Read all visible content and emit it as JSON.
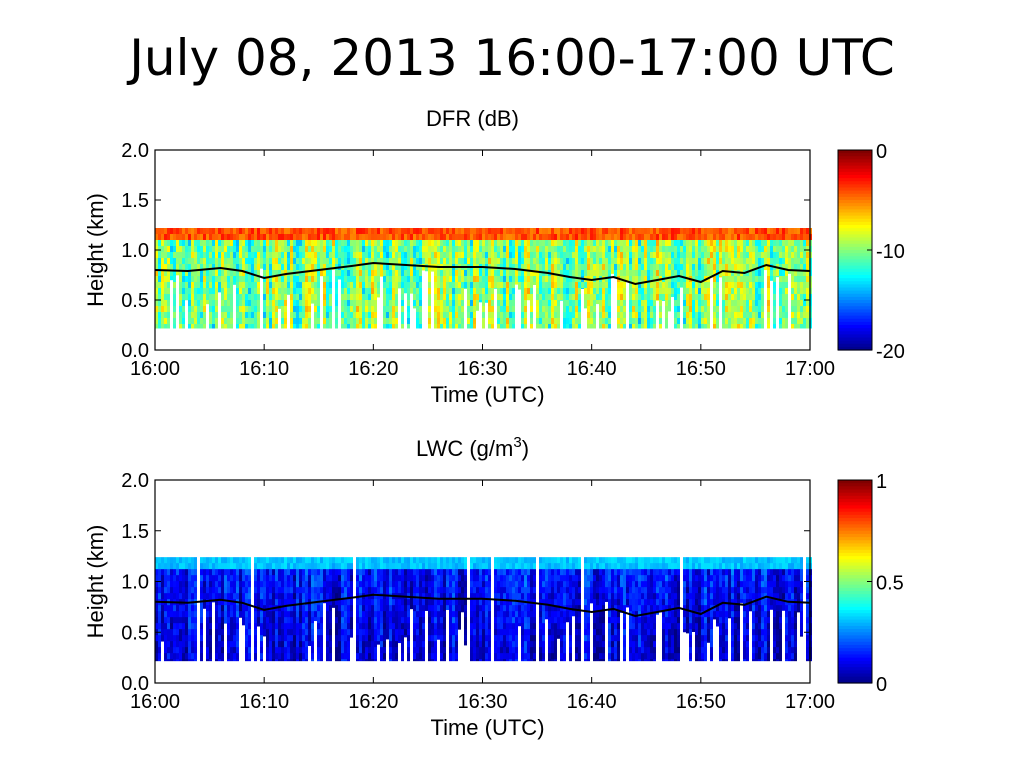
{
  "slide": {
    "title": "July 08, 2013 16:00-17:00 UTC"
  },
  "chart_data": [
    {
      "type": "heatmap",
      "title": "DFR (dB)",
      "title_superscript": "",
      "xlabel": "Time (UTC)",
      "ylabel": "Height (km)",
      "x_ticks": [
        "16:00",
        "16:10",
        "16:20",
        "16:30",
        "16:40",
        "16:50",
        "17:00"
      ],
      "xlim": [
        "16:00",
        "17:00"
      ],
      "y_ticks": [
        "0.0",
        "0.5",
        "1.0",
        "1.5",
        "2.0"
      ],
      "ylim": [
        0,
        2
      ],
      "colorbar": {
        "ticks": [
          "0",
          "-10",
          "-20"
        ],
        "range": [
          -20,
          0
        ],
        "colormap": "jet"
      },
      "echo_base_km": 0.22,
      "echo_top_km": 1.22,
      "field_typical_value": -10,
      "field_variability": 4,
      "top_layer_value": -4,
      "line_series": {
        "name": "",
        "color": "#000000",
        "x": [
          "16:00",
          "16:03",
          "16:06",
          "16:08",
          "16:10",
          "16:12",
          "16:15",
          "16:18",
          "16:20",
          "16:23",
          "16:26",
          "16:30",
          "16:33",
          "16:36",
          "16:38",
          "16:40",
          "16:42",
          "16:44",
          "16:46",
          "16:48",
          "16:50",
          "16:52",
          "16:54",
          "16:56",
          "16:58",
          "17:00"
        ],
        "y": [
          0.8,
          0.79,
          0.82,
          0.79,
          0.72,
          0.76,
          0.8,
          0.84,
          0.87,
          0.85,
          0.83,
          0.83,
          0.81,
          0.77,
          0.73,
          0.7,
          0.73,
          0.66,
          0.7,
          0.74,
          0.68,
          0.79,
          0.77,
          0.85,
          0.8,
          0.79
        ]
      }
    },
    {
      "type": "heatmap",
      "title": "LWC (g/m",
      "title_superscript": "3",
      "title_suffix": ")",
      "xlabel": "Time (UTC)",
      "ylabel": "Height (km)",
      "x_ticks": [
        "16:00",
        "16:10",
        "16:20",
        "16:30",
        "16:40",
        "16:50",
        "17:00"
      ],
      "xlim": [
        "16:00",
        "17:00"
      ],
      "y_ticks": [
        "0.0",
        "0.5",
        "1.0",
        "1.5",
        "2.0"
      ],
      "ylim": [
        0,
        2
      ],
      "colorbar": {
        "ticks": [
          "1",
          "0.5",
          "0"
        ],
        "range": [
          0,
          1
        ],
        "colormap": "jet"
      },
      "echo_base_km": 0.22,
      "echo_top_km": 1.24,
      "field_typical_value": 0.15,
      "field_variability": 0.12,
      "top_layer_value": 0.32,
      "line_series": {
        "name": "",
        "color": "#000000",
        "x": [
          "16:00",
          "16:03",
          "16:06",
          "16:08",
          "16:10",
          "16:12",
          "16:15",
          "16:18",
          "16:20",
          "16:23",
          "16:26",
          "16:30",
          "16:33",
          "16:36",
          "16:38",
          "16:40",
          "16:42",
          "16:44",
          "16:46",
          "16:48",
          "16:50",
          "16:52",
          "16:54",
          "16:56",
          "16:58",
          "17:00"
        ],
        "y": [
          0.8,
          0.79,
          0.82,
          0.79,
          0.72,
          0.76,
          0.8,
          0.84,
          0.87,
          0.85,
          0.83,
          0.83,
          0.81,
          0.77,
          0.73,
          0.7,
          0.73,
          0.66,
          0.7,
          0.74,
          0.68,
          0.79,
          0.77,
          0.85,
          0.8,
          0.79
        ]
      }
    }
  ]
}
